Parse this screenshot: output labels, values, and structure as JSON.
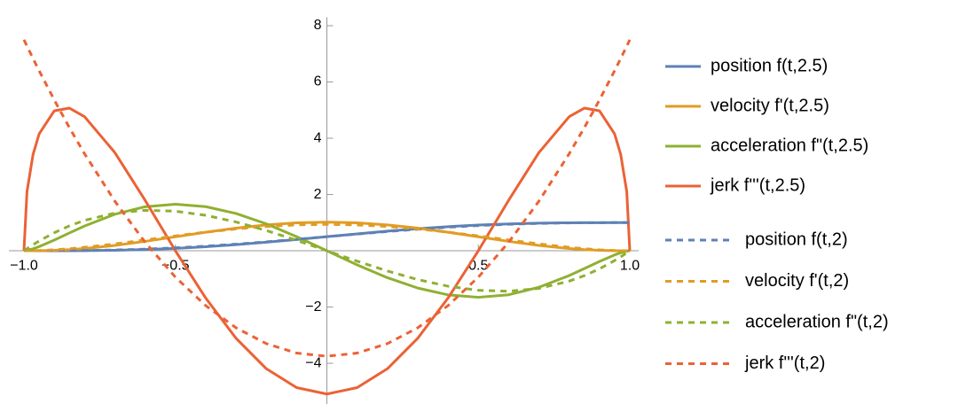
{
  "chart_data": {
    "type": "line",
    "x": [
      -1,
      -0.99,
      -0.97,
      -0.95,
      -0.9,
      -0.85,
      -0.8,
      -0.7,
      -0.6,
      -0.5,
      -0.4,
      -0.3,
      -0.2,
      -0.1,
      0,
      0.1,
      0.2,
      0.3,
      0.4,
      0.5,
      0.6,
      0.7,
      0.8,
      0.85,
      0.9,
      0.95,
      0.97,
      0.99,
      1
    ],
    "series": [
      {
        "name": "position f(t,2.5)",
        "color": "#5e81b5",
        "dashed": false,
        "values": [
          0,
          0,
          0,
          0,
          0.001,
          0.002,
          0.005,
          0.018,
          0.044,
          0.085,
          0.143,
          0.216,
          0.303,
          0.399,
          0.5,
          0.601,
          0.697,
          0.784,
          0.857,
          0.915,
          0.956,
          0.982,
          0.995,
          0.998,
          0.999,
          1,
          1,
          1,
          1
        ]
      },
      {
        "name": "velocity f'(t,2.5)",
        "color": "#e19c24",
        "dashed": false,
        "values": [
          0,
          0,
          0.001,
          0.003,
          0.016,
          0.041,
          0.079,
          0.189,
          0.334,
          0.496,
          0.659,
          0.805,
          0.92,
          0.993,
          1.019,
          0.993,
          0.92,
          0.805,
          0.659,
          0.496,
          0.334,
          0.189,
          0.079,
          0.041,
          0.016,
          0.003,
          0.001,
          0,
          0
        ]
      },
      {
        "name": "acceleration f\"(t,2.5)",
        "color": "#8fb032",
        "dashed": false,
        "values": [
          0,
          0.014,
          0.071,
          0.147,
          0.38,
          0.633,
          0.88,
          1.298,
          1.565,
          1.654,
          1.568,
          1.326,
          0.958,
          0.502,
          0,
          -0.502,
          -0.958,
          -1.326,
          -1.568,
          -1.654,
          -1.565,
          -1.298,
          -0.88,
          -0.633,
          -0.38,
          -0.147,
          -0.071,
          -0.014,
          0
        ]
      },
      {
        "name": "jerk f'''(t,2.5)",
        "color": "#eb6235",
        "dashed": false,
        "values": [
          0,
          2.098,
          3.422,
          4.151,
          4.973,
          5.071,
          4.767,
          3.492,
          1.793,
          0,
          -1.68,
          -3.109,
          -4.192,
          -4.865,
          -5.093,
          -4.865,
          -4.192,
          -3.109,
          -1.68,
          0,
          1.793,
          3.492,
          4.767,
          5.071,
          4.973,
          4.151,
          3.422,
          2.098,
          0
        ]
      },
      {
        "name": "position f(t,2)",
        "color": "#5e81b5",
        "dashed": true,
        "values": [
          0,
          0,
          0,
          0,
          0.001,
          0.004,
          0.009,
          0.027,
          0.058,
          0.104,
          0.163,
          0.235,
          0.317,
          0.407,
          0.5,
          0.593,
          0.683,
          0.765,
          0.837,
          0.896,
          0.942,
          0.973,
          0.991,
          0.996,
          0.999,
          1,
          1,
          1,
          1
        ]
      },
      {
        "name": "velocity f'(t,2)",
        "color": "#e19c24",
        "dashed": true,
        "values": [
          0,
          0,
          0.003,
          0.009,
          0.034,
          0.072,
          0.122,
          0.244,
          0.384,
          0.527,
          0.662,
          0.776,
          0.864,
          0.919,
          0.938,
          0.919,
          0.864,
          0.776,
          0.662,
          0.527,
          0.384,
          0.244,
          0.122,
          0.072,
          0.034,
          0.009,
          0.003,
          0,
          0
        ]
      },
      {
        "name": "acceleration f\"(t,2)",
        "color": "#8fb032",
        "dashed": true,
        "values": [
          0,
          0.074,
          0.215,
          0.347,
          0.641,
          0.885,
          1.08,
          1.339,
          1.44,
          1.406,
          1.26,
          1.024,
          0.72,
          0.371,
          0,
          -0.371,
          -0.72,
          -1.024,
          -1.26,
          -1.406,
          -1.44,
          -1.339,
          -1.08,
          -0.885,
          -0.641,
          -0.347,
          -0.215,
          -0.074,
          0
        ]
      },
      {
        "name": "jerk f'''(t,2)",
        "color": "#eb6235",
        "dashed": true,
        "values": [
          7.5,
          7.276,
          6.835,
          6.403,
          5.363,
          4.378,
          3.45,
          1.763,
          0.3,
          -0.938,
          -1.95,
          -2.738,
          -3.3,
          -3.638,
          -3.75,
          -3.638,
          -3.3,
          -2.738,
          -1.95,
          -0.938,
          0.3,
          1.763,
          3.45,
          4.378,
          5.363,
          6.403,
          6.835,
          7.276,
          7.5
        ]
      }
    ],
    "xlim": [
      -1,
      1
    ],
    "ylim": [
      -5.4,
      8.3
    ],
    "xticks": [
      {
        "value": -1,
        "label": "−1.0"
      },
      {
        "value": -0.5,
        "label": "−0.5"
      },
      {
        "value": 0.5,
        "label": "0.5"
      },
      {
        "value": 1,
        "label": "1.0"
      }
    ],
    "yticks": [
      {
        "value": -4,
        "label": "−4"
      },
      {
        "value": -2,
        "label": "−2"
      },
      2,
      4,
      6,
      8
    ],
    "legend": "right"
  }
}
